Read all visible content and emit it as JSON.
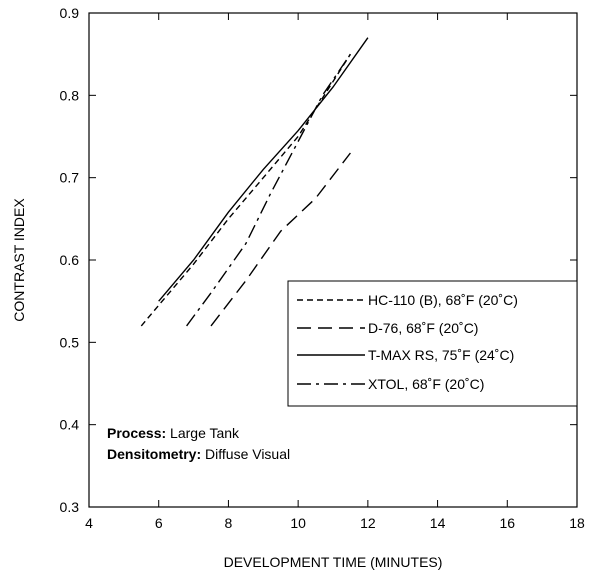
{
  "chart_data": {
    "type": "line",
    "xlabel": "DEVELOPMENT TIME (MINUTES)",
    "ylabel": "CONTRAST INDEX",
    "xlim": [
      4,
      18
    ],
    "ylim": [
      0.3,
      0.9
    ],
    "xticks": [
      4,
      6,
      8,
      10,
      12,
      14,
      16,
      18
    ],
    "yticks": [
      0.3,
      0.4,
      0.5,
      0.6,
      0.7,
      0.8,
      0.9
    ],
    "grid": false,
    "legend_position": "right",
    "series": [
      {
        "name": "HC-110 (B), 68˚F (20˚C)",
        "dash": "short-dash",
        "points": [
          [
            5.5,
            0.52
          ],
          [
            6,
            0.545
          ],
          [
            7,
            0.595
          ],
          [
            8,
            0.65
          ],
          [
            9,
            0.7
          ],
          [
            10,
            0.75
          ],
          [
            11.5,
            0.85
          ]
        ]
      },
      {
        "name": "D-76, 68˚F (20˚C)",
        "dash": "long-dash",
        "points": [
          [
            7.5,
            0.52
          ],
          [
            8.5,
            0.575
          ],
          [
            9.5,
            0.635
          ],
          [
            10.5,
            0.675
          ],
          [
            11.5,
            0.73
          ]
        ]
      },
      {
        "name": "T-MAX RS, 75˚F (24˚C)",
        "dash": "solid",
        "points": [
          [
            6,
            0.55
          ],
          [
            7,
            0.6
          ],
          [
            8,
            0.658
          ],
          [
            9,
            0.71
          ],
          [
            10,
            0.757
          ],
          [
            11,
            0.81
          ],
          [
            12,
            0.87
          ]
        ]
      },
      {
        "name": "XTOL, 68˚F (20˚C)",
        "dash": "dash-dot",
        "points": [
          [
            6.8,
            0.52
          ],
          [
            7.5,
            0.56
          ],
          [
            8.5,
            0.62
          ],
          [
            9.2,
            0.68
          ],
          [
            9.7,
            0.72
          ],
          [
            10.2,
            0.76
          ],
          [
            10.7,
            0.8
          ],
          [
            11.5,
            0.85
          ]
        ]
      }
    ],
    "annotation": {
      "process_label": "Process:",
      "process_value": " Large Tank",
      "densitometry_label": "Densitometry:",
      "densitometry_value": " Diffuse Visual"
    }
  }
}
